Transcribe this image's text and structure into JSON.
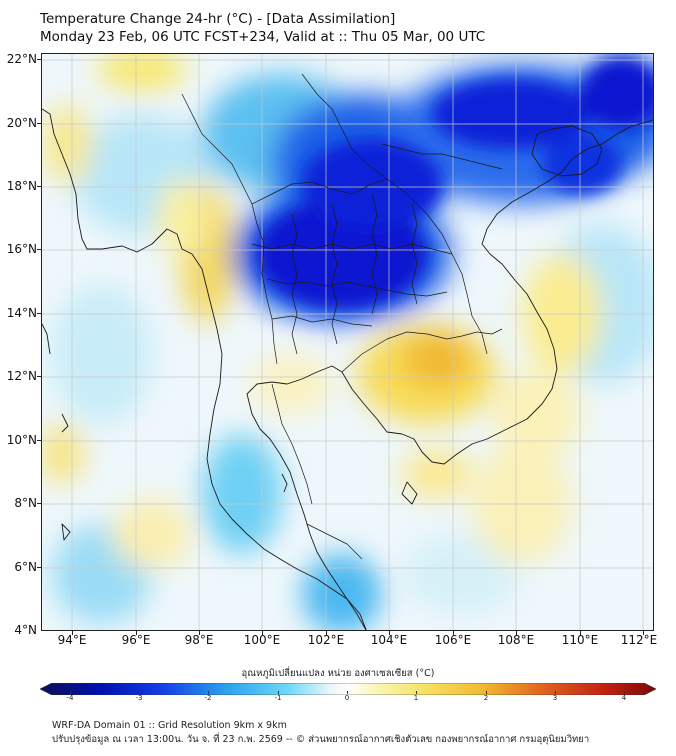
{
  "title": {
    "line1": "Temperature Change 24-hr (°C) - [Data Assimilation]",
    "line2": "Monday 23 Feb, 06 UTC FCST+234, Valid at :: Thu 05 Mar, 00 UTC"
  },
  "map": {
    "region": "Mainland Southeast Asia",
    "lat_labels": [
      "22°N",
      "20°N",
      "18°N",
      "16°N",
      "14°N",
      "12°N",
      "10°N",
      "8°N",
      "6°N",
      "4°N"
    ],
    "lon_labels": [
      "94°E",
      "96°E",
      "98°E",
      "100°E",
      "102°E",
      "104°E",
      "106°E",
      "108°E",
      "110°E",
      "112°E"
    ],
    "colors": {
      "strong_cooling": "#0a20d8",
      "moderate_cooling": "#1e78f0",
      "light_cooling": "#5cc8f2",
      "slight_cooling": "#bde8f8",
      "neutral": "#f4f8fa",
      "slight_warming": "#fbf2a8",
      "light_warming": "#f8da50",
      "moderate_warming": "#f0b830",
      "coastline": "#1a1a1a",
      "grid": "#c8c8c8"
    }
  },
  "colorbar": {
    "label": "อุณหภูมิเปลี่ยนแปลง หน่วย องศาเซลเซียส (°C)",
    "ticks": [
      "-4",
      "-3",
      "-2",
      "-1",
      "0",
      "1",
      "2",
      "3",
      "4"
    ],
    "stops": [
      "#0b0f5a",
      "#0010b0",
      "#1440e8",
      "#2aa0ee",
      "#6ad8f6",
      "#e8f6fa",
      "#ffffff",
      "#fbf4b0",
      "#f6e060",
      "#f2b830",
      "#e06020",
      "#c02010",
      "#7a0808"
    ]
  },
  "footer": {
    "line1": "WRF-DA Domain 01 :: Grid Resolution 9km x 9km",
    "line2": "ปรับปรุงข้อมูล ณ เวลา 13:00น. วัน จ. ที่ 23 ก.พ. 2569 -- © ส่วนพยากรณ์อากาศเชิงตัวเลข กองพยากรณ์อากาศ กรมอุตุนิยมวิทยา"
  }
}
